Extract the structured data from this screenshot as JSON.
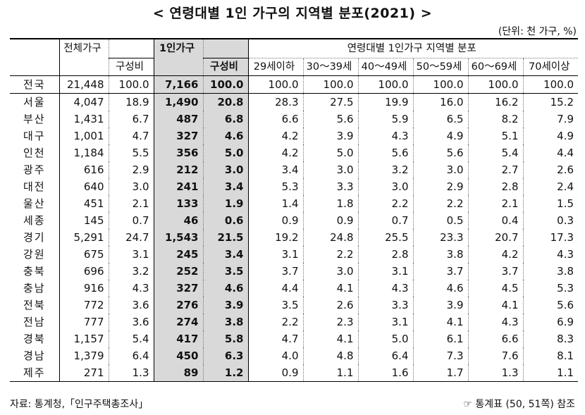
{
  "title": "< 연령대별 1인 가구의 지역별 분포(2021) >",
  "unit": "(단위: 천 가구, %)",
  "headers": {
    "total": "전체가구",
    "total_share": "구성비",
    "single": "1인가구",
    "single_share": "구성비",
    "group": "연령대별 1인가구 지역별 분포",
    "ages": [
      "29세이하",
      "30～39세",
      "40～49세",
      "50～59세",
      "60～69세",
      "70세이상"
    ]
  },
  "rows": [
    {
      "region": "전국",
      "total": "21,448",
      "total_share": "100.0",
      "single": "7,166",
      "single_share": "100.0",
      "ages": [
        "100.0",
        "100.0",
        "100.0",
        "100.0",
        "100.0",
        "100.0"
      ]
    },
    {
      "region": "서울",
      "total": "4,047",
      "total_share": "18.9",
      "single": "1,490",
      "single_share": "20.8",
      "ages": [
        "28.3",
        "27.5",
        "19.9",
        "16.0",
        "16.2",
        "15.2"
      ]
    },
    {
      "region": "부산",
      "total": "1,431",
      "total_share": "6.7",
      "single": "487",
      "single_share": "6.8",
      "ages": [
        "6.6",
        "5.6",
        "5.9",
        "6.5",
        "8.2",
        "7.9"
      ]
    },
    {
      "region": "대구",
      "total": "1,001",
      "total_share": "4.7",
      "single": "327",
      "single_share": "4.6",
      "ages": [
        "4.2",
        "3.9",
        "4.3",
        "4.9",
        "5.1",
        "4.9"
      ]
    },
    {
      "region": "인천",
      "total": "1,184",
      "total_share": "5.5",
      "single": "356",
      "single_share": "5.0",
      "ages": [
        "4.2",
        "5.0",
        "5.6",
        "5.6",
        "5.4",
        "4.4"
      ]
    },
    {
      "region": "광주",
      "total": "616",
      "total_share": "2.9",
      "single": "212",
      "single_share": "3.0",
      "ages": [
        "3.4",
        "3.0",
        "3.2",
        "3.0",
        "2.7",
        "2.6"
      ]
    },
    {
      "region": "대전",
      "total": "640",
      "total_share": "3.0",
      "single": "241",
      "single_share": "3.4",
      "ages": [
        "5.3",
        "3.3",
        "3.0",
        "2.9",
        "2.8",
        "2.4"
      ]
    },
    {
      "region": "울산",
      "total": "451",
      "total_share": "2.1",
      "single": "133",
      "single_share": "1.9",
      "ages": [
        "1.4",
        "1.8",
        "2.2",
        "2.2",
        "2.1",
        "1.5"
      ]
    },
    {
      "region": "세종",
      "total": "145",
      "total_share": "0.7",
      "single": "46",
      "single_share": "0.6",
      "ages": [
        "0.9",
        "0.9",
        "0.7",
        "0.5",
        "0.4",
        "0.3"
      ]
    },
    {
      "region": "경기",
      "total": "5,291",
      "total_share": "24.7",
      "single": "1,543",
      "single_share": "21.5",
      "ages": [
        "19.2",
        "24.8",
        "25.5",
        "23.3",
        "20.7",
        "17.3"
      ]
    },
    {
      "region": "강원",
      "total": "675",
      "total_share": "3.1",
      "single": "245",
      "single_share": "3.4",
      "ages": [
        "3.1",
        "2.2",
        "2.8",
        "3.8",
        "4.2",
        "4.3"
      ]
    },
    {
      "region": "충북",
      "total": "696",
      "total_share": "3.2",
      "single": "252",
      "single_share": "3.5",
      "ages": [
        "3.7",
        "3.0",
        "3.1",
        "3.7",
        "3.7",
        "3.8"
      ]
    },
    {
      "region": "충남",
      "total": "916",
      "total_share": "4.3",
      "single": "327",
      "single_share": "4.6",
      "ages": [
        "4.4",
        "4.1",
        "4.3",
        "4.6",
        "4.5",
        "5.3"
      ]
    },
    {
      "region": "전북",
      "total": "772",
      "total_share": "3.6",
      "single": "276",
      "single_share": "3.9",
      "ages": [
        "3.5",
        "2.6",
        "3.3",
        "3.9",
        "4.1",
        "5.6"
      ]
    },
    {
      "region": "전남",
      "total": "777",
      "total_share": "3.6",
      "single": "274",
      "single_share": "3.8",
      "ages": [
        "2.2",
        "2.3",
        "3.1",
        "4.1",
        "4.3",
        "6.9"
      ]
    },
    {
      "region": "경북",
      "total": "1,157",
      "total_share": "5.4",
      "single": "417",
      "single_share": "5.8",
      "ages": [
        "4.7",
        "4.1",
        "5.0",
        "6.1",
        "6.6",
        "8.3"
      ]
    },
    {
      "region": "경남",
      "total": "1,379",
      "total_share": "6.4",
      "single": "450",
      "single_share": "6.3",
      "ages": [
        "4.0",
        "4.8",
        "6.4",
        "7.3",
        "7.6",
        "8.1"
      ]
    },
    {
      "region": "제주",
      "total": "271",
      "total_share": "1.3",
      "single": "89",
      "single_share": "1.2",
      "ages": [
        "0.9",
        "1.1",
        "1.6",
        "1.7",
        "1.3",
        "1.1"
      ]
    }
  ],
  "source": "자료: 통계청,「인구주택총조사」",
  "reference": "☞ 통계표 (50, 51쪽) 참조",
  "colors": {
    "shade": "#d9d9d9"
  }
}
